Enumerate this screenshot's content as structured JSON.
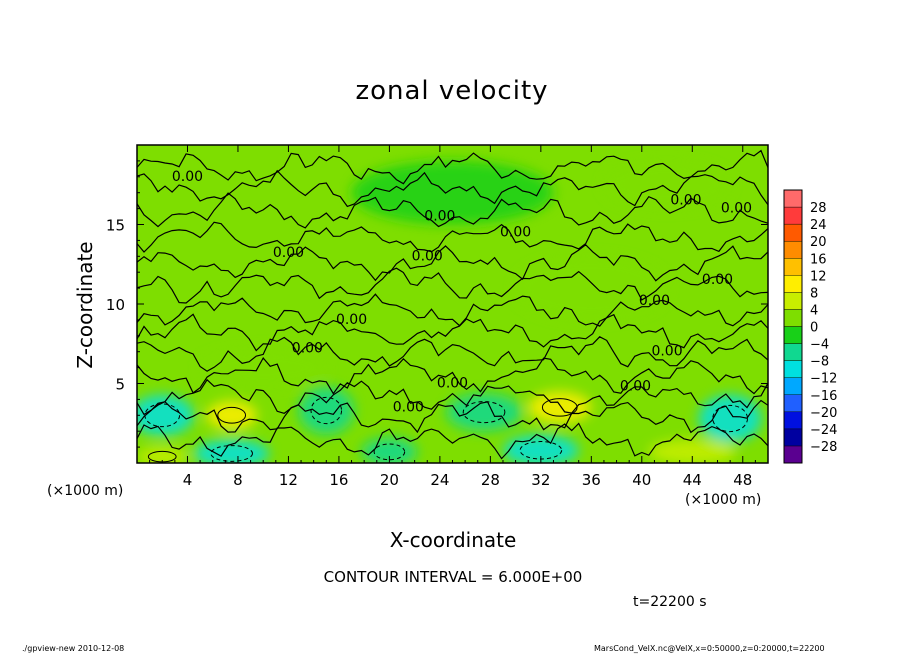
{
  "chart_data": {
    "type": "heatmap",
    "title": "zonal velocity",
    "xlabel": "X-coordinate",
    "ylabel": "Z-coordinate",
    "x_unit_label": "(×1000 m)",
    "xlim": [
      0,
      50
    ],
    "ylim": [
      0,
      20
    ],
    "x_ticks": [
      4,
      8,
      12,
      16,
      20,
      24,
      28,
      32,
      36,
      40,
      44,
      48
    ],
    "y_ticks": [
      5,
      10,
      15
    ],
    "contour_interval_label": "CONTOUR INTERVAL = 6.000E+00",
    "time_label": "t=22200 s",
    "contour_label_text": "0.00",
    "contour_labels": [
      {
        "x": 4.0,
        "z": 18.0,
        "text": "0.00"
      },
      {
        "x": 24.0,
        "z": 15.5,
        "text": "0.00"
      },
      {
        "x": 30.0,
        "z": 14.5,
        "text": "0.00"
      },
      {
        "x": 43.5,
        "z": 16.5,
        "text": "0.00"
      },
      {
        "x": 47.5,
        "z": 16.0,
        "text": "0.00"
      },
      {
        "x": 12.0,
        "z": 13.2,
        "text": "0.00"
      },
      {
        "x": 23.0,
        "z": 13.0,
        "text": "0.00"
      },
      {
        "x": 46.0,
        "z": 11.5,
        "text": "0.00"
      },
      {
        "x": 41.0,
        "z": 10.2,
        "text": "0.00"
      },
      {
        "x": 17.0,
        "z": 9.0,
        "text": "0.00"
      },
      {
        "x": 13.5,
        "z": 7.2,
        "text": "0.00"
      },
      {
        "x": 42.0,
        "z": 7.0,
        "text": "0.00"
      },
      {
        "x": 25.0,
        "z": 5.0,
        "text": "0.00"
      },
      {
        "x": 39.5,
        "z": 4.8,
        "text": "0.00"
      },
      {
        "x": 21.5,
        "z": 3.5,
        "text": "0.00"
      }
    ],
    "colorbar": {
      "levels": [
        28,
        24,
        20,
        16,
        12,
        8,
        4,
        0,
        -4,
        -8,
        -12,
        -16,
        -20,
        -24,
        -28
      ],
      "colors": [
        "#ff6a6a",
        "#ff3b3b",
        "#ff5a00",
        "#ff8c00",
        "#ffc000",
        "#ffee00",
        "#c8ee00",
        "#7ede00",
        "#18d018",
        "#10d890",
        "#00e0e0",
        "#00a8ff",
        "#2060ff",
        "#0010e0",
        "#0000a0",
        "#5a0090"
      ]
    },
    "anomalies": [
      {
        "x": 2.0,
        "z": 3.0,
        "value": -9,
        "sx": 2.5,
        "sz": 1.3
      },
      {
        "x": 7.5,
        "z": 3.0,
        "value": 9,
        "sx": 2.0,
        "sz": 0.9
      },
      {
        "x": 7.5,
        "z": 0.6,
        "value": -9,
        "sx": 3.0,
        "sz": 0.9
      },
      {
        "x": 15.0,
        "z": 3.3,
        "value": -8,
        "sx": 2.2,
        "sz": 1.5
      },
      {
        "x": 20.0,
        "z": 0.7,
        "value": -8,
        "sx": 2.2,
        "sz": 0.9
      },
      {
        "x": 27.5,
        "z": 3.2,
        "value": -8,
        "sx": 3.0,
        "sz": 1.2
      },
      {
        "x": 33.5,
        "z": 3.5,
        "value": 9,
        "sx": 2.5,
        "sz": 1.0
      },
      {
        "x": 32.0,
        "z": 0.8,
        "value": -10,
        "sx": 3.0,
        "sz": 1.0
      },
      {
        "x": 47.0,
        "z": 2.8,
        "value": -10,
        "sx": 2.5,
        "sz": 1.5
      },
      {
        "x": 44.0,
        "z": 0.7,
        "value": 5,
        "sx": 3.5,
        "sz": 0.8
      },
      {
        "x": 2.0,
        "z": 0.4,
        "value": 7,
        "sx": 2.0,
        "sz": 0.6
      },
      {
        "x": 10.0,
        "z": 6.0,
        "value": 3,
        "sx": 5.0,
        "sz": 1.2
      },
      {
        "x": 36.0,
        "z": 11.0,
        "value": 3,
        "sx": 6.0,
        "sz": 2.0
      },
      {
        "x": 25.0,
        "z": 17.0,
        "value": -3,
        "sx": 8.0,
        "sz": 2.0
      },
      {
        "x": 42.0,
        "z": 17.5,
        "value": 3,
        "sx": 5.0,
        "sz": 1.5
      }
    ]
  },
  "footer": {
    "left": "./gpview-new   2010-12-08",
    "right": "MarsCond_VelX.nc@VelX,x=0:50000,z=0:20000,t=22200"
  }
}
